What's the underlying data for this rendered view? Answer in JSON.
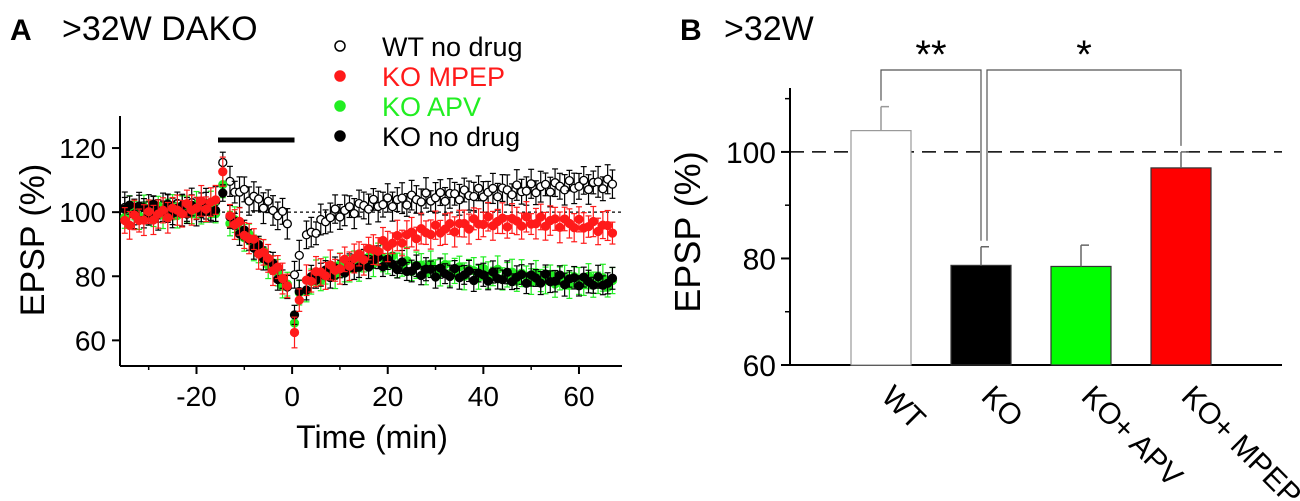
{
  "chart_data": [
    {
      "type": "scatter",
      "panel_letter": "A",
      "title": ">32W DAKO",
      "xlabel": "Time (min)",
      "ylabel": "EPSP (%)",
      "xlim": [
        -36,
        69
      ],
      "ylim": [
        52,
        130
      ],
      "xticks": [
        -20,
        0,
        20,
        40,
        60
      ],
      "yticks": [
        60,
        80,
        100,
        120
      ],
      "baseline": 100,
      "stim_bar": [
        -15.5,
        0.5
      ],
      "legend_position": "top-right",
      "series": [
        {
          "name": "WT no drug",
          "color": "#000000",
          "hollow": true,
          "anchors": [
            [
              -35,
              100
            ],
            [
              -16,
              102
            ],
            [
              -14.5,
              117
            ],
            [
              -13,
              108
            ],
            [
              -5,
              102
            ],
            [
              -0.5,
              97
            ],
            [
              0.5,
              79
            ],
            [
              1.5,
              87
            ],
            [
              3,
              92
            ],
            [
              8,
              99
            ],
            [
              15,
              102
            ],
            [
              25,
              104
            ],
            [
              40,
              106
            ],
            [
              55,
              108
            ],
            [
              67,
              109
            ]
          ],
          "err": 4
        },
        {
          "name": "KO MPEP",
          "color": "#ff1a1a",
          "hollow": false,
          "anchors": [
            [
              -35,
              97
            ],
            [
              -16,
              103
            ],
            [
              -14.5,
              113
            ],
            [
              -13,
              99
            ],
            [
              -5,
              85
            ],
            [
              -0.5,
              77
            ],
            [
              0.5,
              62
            ],
            [
              1.5,
              74
            ],
            [
              4,
              80
            ],
            [
              10,
              83
            ],
            [
              18,
              89
            ],
            [
              25,
              93
            ],
            [
              40,
              97
            ],
            [
              55,
              97
            ],
            [
              67,
              95
            ]
          ],
          "err": 4
        },
        {
          "name": "KO APV",
          "color": "#22ee22",
          "hollow": false,
          "anchors": [
            [
              -35,
              100
            ],
            [
              -16,
              101
            ],
            [
              -14.5,
              107
            ],
            [
              -13,
              98
            ],
            [
              -5,
              85
            ],
            [
              -0.5,
              75
            ],
            [
              0.5,
              67
            ],
            [
              1.5,
              74
            ],
            [
              5,
              80
            ],
            [
              10,
              82
            ],
            [
              18,
              86
            ],
            [
              25,
              83
            ],
            [
              40,
              81
            ],
            [
              55,
              79
            ],
            [
              67,
              78
            ]
          ],
          "err": 3.5
        },
        {
          "name": "KO no drug",
          "color": "#000000",
          "hollow": false,
          "anchors": [
            [
              -35,
              101
            ],
            [
              -16,
              101
            ],
            [
              -14.5,
              106
            ],
            [
              -13,
              98
            ],
            [
              -5,
              85
            ],
            [
              -0.5,
              75
            ],
            [
              0.5,
              68
            ],
            [
              1.5,
              74
            ],
            [
              5,
              80
            ],
            [
              10,
              82
            ],
            [
              18,
              85
            ],
            [
              25,
              82
            ],
            [
              40,
              80
            ],
            [
              55,
              79
            ],
            [
              67,
              78
            ]
          ],
          "err": 3
        }
      ]
    },
    {
      "type": "bar",
      "panel_letter": "B",
      "title": ">32W",
      "ylabel": "EPSP (%)",
      "ylim": [
        60,
        112
      ],
      "yticks": [
        60,
        80,
        100
      ],
      "baseline": 100,
      "categories": [
        "WT",
        "KO",
        "KO+ APV",
        "KO+ MPEP"
      ],
      "values": [
        104,
        78.7,
        78.5,
        97
      ],
      "errors": [
        4.5,
        3.5,
        4,
        3
      ],
      "colors": [
        "#ffffff",
        "#000000",
        "#00ff00",
        "#ff0000"
      ],
      "significance": [
        {
          "label": "**",
          "from": 0,
          "to": 1
        },
        {
          "label": "*",
          "from": 1,
          "to": 3
        }
      ]
    }
  ]
}
